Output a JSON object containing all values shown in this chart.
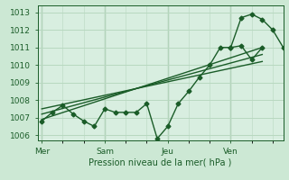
{
  "background_color": "#cce8d4",
  "plot_bg_color": "#d8eee0",
  "line_color": "#1a5c28",
  "grid_color": "#b8d8c0",
  "title": "Pression niveau de la mer( hPa )",
  "ylabel_ticks": [
    1006,
    1007,
    1008,
    1009,
    1010,
    1011,
    1012,
    1013
  ],
  "ylim": [
    1005.7,
    1013.4
  ],
  "day_labels": [
    "Mer",
    "Sam",
    "Jeu",
    "Ven"
  ],
  "day_positions": [
    0,
    3,
    6,
    9
  ],
  "xlim": [
    -0.2,
    11.5
  ],
  "main_series_x": [
    0,
    0.5,
    1,
    1.5,
    2,
    2.5,
    3,
    3.5,
    4,
    4.5,
    5,
    5.5,
    6,
    6.5,
    7,
    7.5,
    8,
    8.5,
    9,
    9.5,
    10,
    10.5
  ],
  "main_series_y": [
    1006.8,
    1007.3,
    1007.7,
    1007.2,
    1006.8,
    1006.5,
    1007.5,
    1007.3,
    1007.3,
    1007.3,
    1007.8,
    1005.8,
    1006.5,
    1007.8,
    1008.5,
    1009.3,
    1010.0,
    1011.0,
    1011.0,
    1011.1,
    1010.3,
    1011.0
  ],
  "trend1_x": [
    0,
    10.5
  ],
  "trend1_y": [
    1006.9,
    1011.0
  ],
  "trend2_x": [
    0,
    10.5
  ],
  "trend2_y": [
    1007.2,
    1010.6
  ],
  "trend3_x": [
    0,
    10.5
  ],
  "trend3_y": [
    1007.5,
    1010.2
  ],
  "peak_series_x": [
    9,
    9.5,
    10,
    10.5,
    11,
    11.5
  ],
  "peak_series_y": [
    1011.0,
    1012.7,
    1012.9,
    1012.6,
    1012.0,
    1011.0
  ],
  "marker": "D",
  "markersize": 2.5,
  "linewidth": 1.0
}
